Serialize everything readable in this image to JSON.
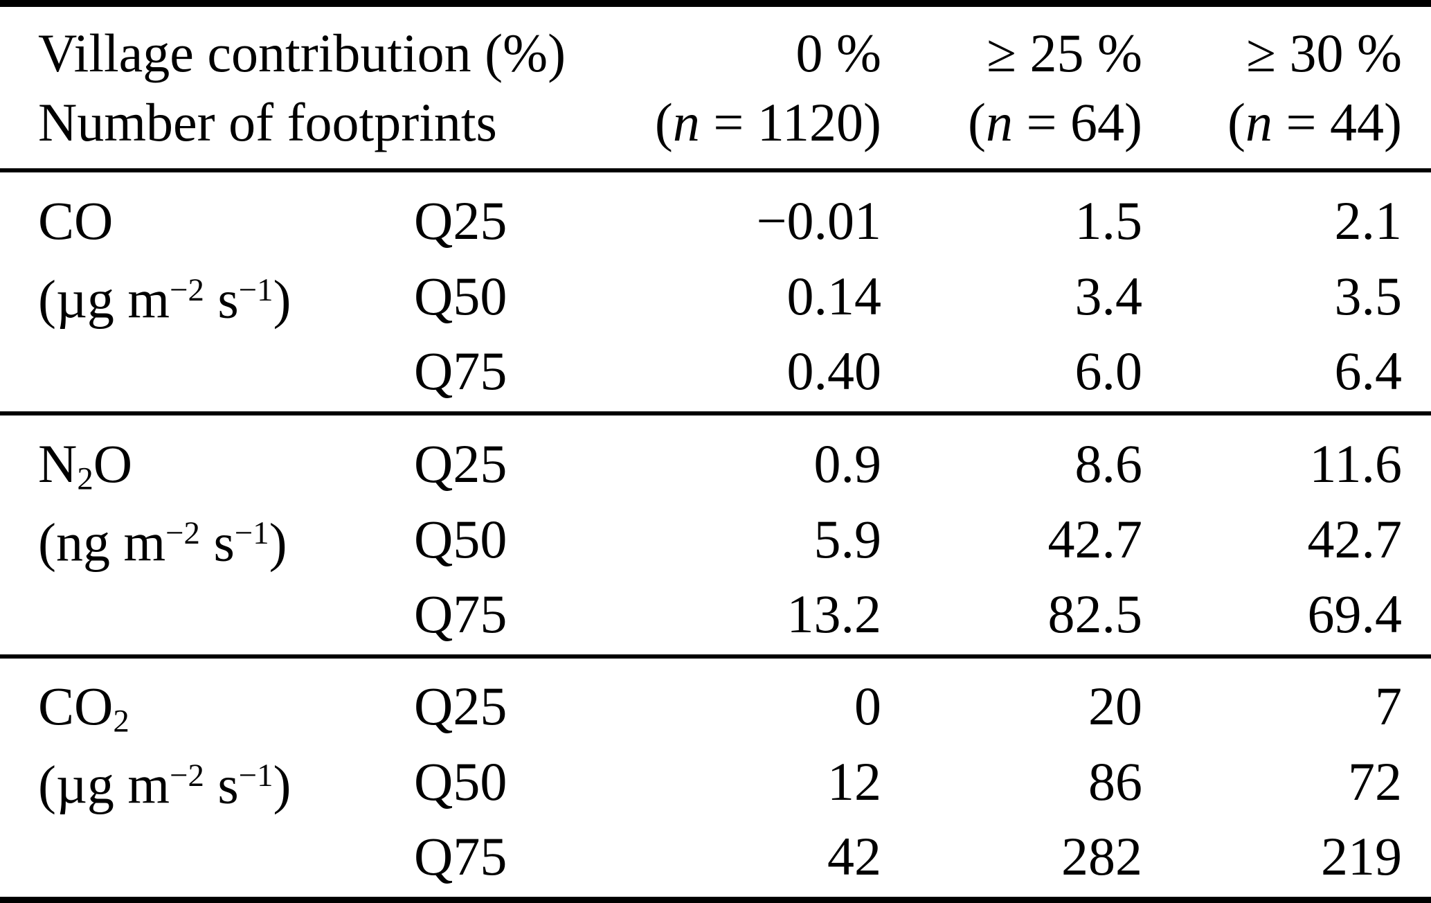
{
  "table": {
    "header": {
      "row1_col1": "Village contribution (%)",
      "row2_col1": "Number of footprints",
      "paren_open": "(",
      "n_symbol": "n",
      "equals": " = ",
      "paren_close": ")",
      "columns": [
        {
          "label": "0 %",
          "n": "1120"
        },
        {
          "label": "≥ 25 %",
          "n": "64"
        },
        {
          "label": "≥ 30 %",
          "n": "44"
        }
      ]
    },
    "sections": [
      {
        "species": "CO",
        "formula": {
          "pre": "CO",
          "sub": "",
          "post": ""
        },
        "unit": {
          "pre": "(µg m",
          "sup1": "−2",
          "mid": " s",
          "sup2": "−1",
          "post": ")"
        },
        "rows": [
          {
            "q": "Q25",
            "values": [
              "−0.01",
              "1.5",
              "2.1"
            ]
          },
          {
            "q": "Q50",
            "values": [
              "0.14",
              "3.4",
              "3.5"
            ]
          },
          {
            "q": "Q75",
            "values": [
              "0.40",
              "6.0",
              "6.4"
            ]
          }
        ]
      },
      {
        "species": "N2O",
        "formula": {
          "pre": "N",
          "sub": "2",
          "post": "O"
        },
        "unit": {
          "pre": "(ng m",
          "sup1": "−2",
          "mid": " s",
          "sup2": "−1",
          "post": ")"
        },
        "rows": [
          {
            "q": "Q25",
            "values": [
              "0.9",
              "8.6",
              "11.6"
            ]
          },
          {
            "q": "Q50",
            "values": [
              "5.9",
              "42.7",
              "42.7"
            ]
          },
          {
            "q": "Q75",
            "values": [
              "13.2",
              "82.5",
              "69.4"
            ]
          }
        ]
      },
      {
        "species": "CO2",
        "formula": {
          "pre": "CO",
          "sub": "2",
          "post": ""
        },
        "unit": {
          "pre": "(µg m",
          "sup1": "−2",
          "mid": " s",
          "sup2": "−1",
          "post": ")"
        },
        "rows": [
          {
            "q": "Q25",
            "values": [
              "0",
              "20",
              "7"
            ]
          },
          {
            "q": "Q50",
            "values": [
              "12",
              "86",
              "72"
            ]
          },
          {
            "q": "Q75",
            "values": [
              "42",
              "282",
              "219"
            ]
          }
        ]
      }
    ]
  },
  "chart_data": {
    "type": "table",
    "columns": [
      "Species (unit)",
      "Quantile",
      "0 % (n = 1120)",
      "≥ 25 % (n = 64)",
      "≥ 30 % (n = 44)"
    ],
    "rows": [
      [
        "CO (µg m−2 s−1)",
        "Q25",
        "−0.01",
        "1.5",
        "2.1"
      ],
      [
        "CO (µg m−2 s−1)",
        "Q50",
        "0.14",
        "3.4",
        "3.5"
      ],
      [
        "CO (µg m−2 s−1)",
        "Q75",
        "0.40",
        "6.0",
        "6.4"
      ],
      [
        "N2O (ng m−2 s−1)",
        "Q25",
        "0.9",
        "8.6",
        "11.6"
      ],
      [
        "N2O (ng m−2 s−1)",
        "Q50",
        "5.9",
        "42.7",
        "42.7"
      ],
      [
        "N2O (ng m−2 s−1)",
        "Q75",
        "13.2",
        "82.5",
        "69.4"
      ],
      [
        "CO2 (µg m−2 s−1)",
        "Q25",
        "0",
        "20",
        "7"
      ],
      [
        "CO2 (µg m−2 s−1)",
        "Q50",
        "12",
        "86",
        "72"
      ],
      [
        "CO2 (µg m−2 s−1)",
        "Q75",
        "42",
        "282",
        "219"
      ]
    ]
  }
}
